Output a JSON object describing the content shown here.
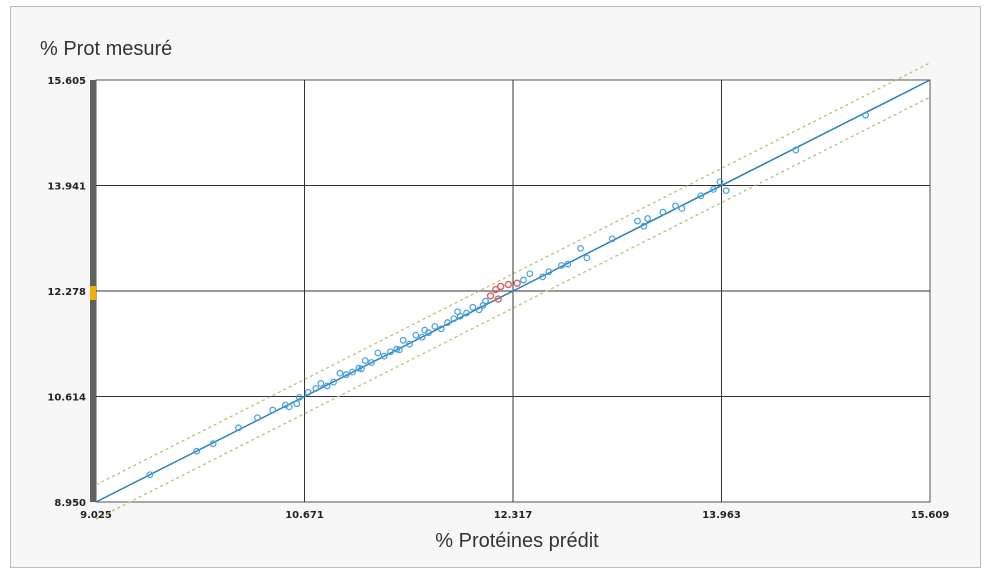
{
  "chart_data": {
    "type": "scatter",
    "ylabel": "% Prot mesuré",
    "xlabel": "% Protéines prédit",
    "xlim": [
      9.025,
      15.609
    ],
    "ylim": [
      8.95,
      15.605
    ],
    "x_ticks": [
      "9.025",
      "10.671",
      "12.317",
      "13.963",
      "15.609"
    ],
    "y_ticks": [
      "8.950",
      "10.614",
      "12.278",
      "13.941",
      "15.605"
    ],
    "grid": true,
    "colors": {
      "points": "#4a9fd8",
      "highlight_points": "#e0605a",
      "regression_line": "#2a7fc0",
      "limit_lines": "#b5c47a",
      "side_bar": "#606060",
      "side_bar_marker": "#f2b100"
    },
    "regression": {
      "x": [
        9.025,
        15.609
      ],
      "y": [
        8.95,
        15.605
      ]
    },
    "limit_offset": 0.27,
    "side_bar_marker_y": 12.278,
    "points": [
      [
        9.45,
        9.38
      ],
      [
        9.82,
        9.75
      ],
      [
        9.95,
        9.87
      ],
      [
        10.15,
        10.12
      ],
      [
        10.3,
        10.28
      ],
      [
        10.42,
        10.4
      ],
      [
        10.52,
        10.48
      ],
      [
        10.55,
        10.45
      ],
      [
        10.61,
        10.5
      ],
      [
        10.7,
        10.68
      ],
      [
        10.76,
        10.74
      ],
      [
        10.8,
        10.82
      ],
      [
        10.85,
        10.78
      ],
      [
        10.9,
        10.84
      ],
      [
        10.95,
        10.98
      ],
      [
        11.0,
        10.96
      ],
      [
        11.05,
        11.0
      ],
      [
        11.1,
        11.06
      ],
      [
        11.15,
        11.18
      ],
      [
        11.2,
        11.15
      ],
      [
        11.25,
        11.3
      ],
      [
        11.3,
        11.25
      ],
      [
        11.35,
        11.32
      ],
      [
        11.4,
        11.36
      ],
      [
        11.45,
        11.5
      ],
      [
        11.5,
        11.44
      ],
      [
        11.55,
        11.58
      ],
      [
        11.6,
        11.55
      ],
      [
        11.65,
        11.62
      ],
      [
        11.7,
        11.72
      ],
      [
        11.75,
        11.68
      ],
      [
        11.8,
        11.78
      ],
      [
        11.85,
        11.84
      ],
      [
        11.9,
        11.88
      ],
      [
        11.95,
        11.93
      ],
      [
        12.0,
        12.02
      ],
      [
        12.05,
        11.98
      ],
      [
        12.1,
        12.12
      ],
      [
        12.45,
        12.55
      ],
      [
        12.55,
        12.5
      ],
      [
        12.6,
        12.58
      ],
      [
        12.7,
        12.68
      ],
      [
        12.85,
        12.95
      ],
      [
        12.9,
        12.8
      ],
      [
        13.1,
        13.1
      ],
      [
        13.3,
        13.38
      ],
      [
        13.35,
        13.3
      ],
      [
        13.5,
        13.52
      ],
      [
        13.6,
        13.62
      ],
      [
        13.65,
        13.58
      ],
      [
        13.8,
        13.78
      ],
      [
        13.9,
        13.88
      ],
      [
        13.95,
        14.0
      ],
      [
        14.0,
        13.86
      ],
      [
        14.55,
        14.5
      ],
      [
        15.1,
        15.05
      ],
      [
        10.63,
        10.6
      ],
      [
        11.12,
        11.05
      ],
      [
        11.42,
        11.35
      ],
      [
        11.62,
        11.66
      ],
      [
        11.88,
        11.95
      ],
      [
        12.08,
        12.05
      ],
      [
        12.4,
        12.45
      ],
      [
        12.75,
        12.7
      ],
      [
        13.38,
        13.42
      ]
    ],
    "highlight_points": [
      [
        12.14,
        12.2
      ],
      [
        12.18,
        12.3
      ],
      [
        12.22,
        12.35
      ],
      [
        12.2,
        12.15
      ],
      [
        12.28,
        12.38
      ],
      [
        12.35,
        12.4
      ]
    ]
  }
}
